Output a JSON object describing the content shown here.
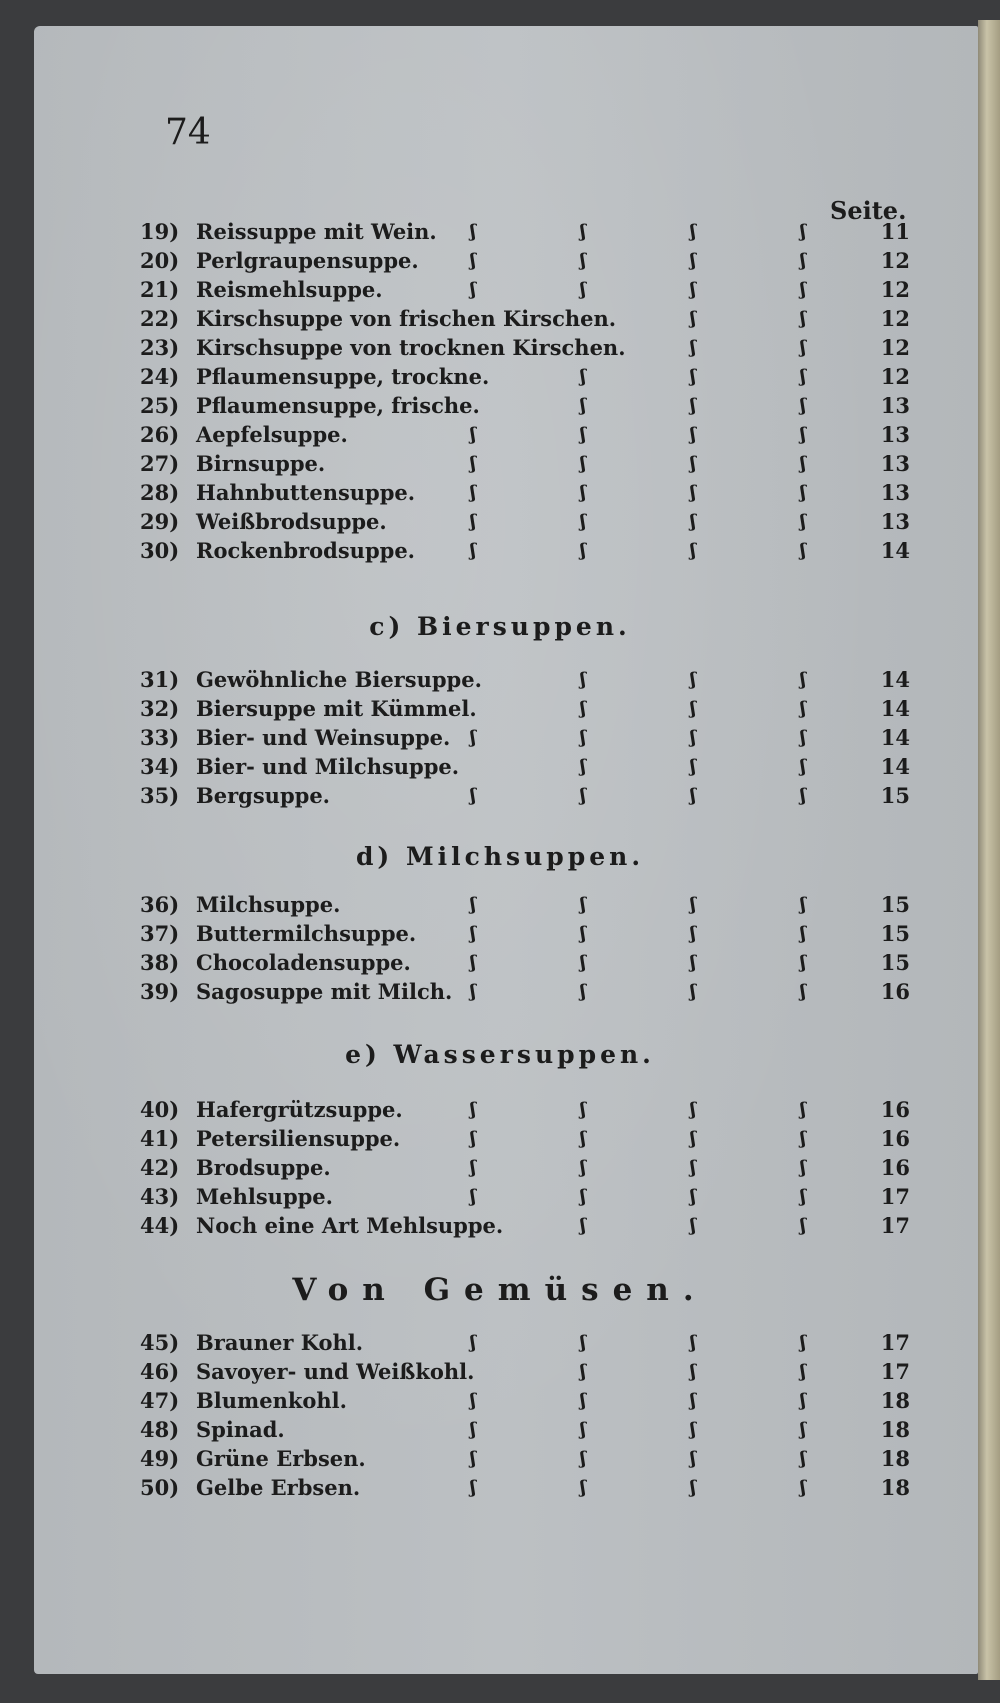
{
  "page_number": "74",
  "column_header": "Seite.",
  "sections": [
    {
      "heading": "",
      "rows": [
        {
          "num": "19)",
          "title": "Reissuppe mit Wein.",
          "page": "11"
        },
        {
          "num": "20)",
          "title": "Perlgraupensuppe.",
          "page": "12"
        },
        {
          "num": "21)",
          "title": "Reismehlsuppe.",
          "page": "12"
        },
        {
          "num": "22)",
          "title": "Kirschsuppe von frischen Kirschen.",
          "page": "12"
        },
        {
          "num": "23)",
          "title": "Kirschsuppe von trocknen Kirschen.",
          "page": "12"
        },
        {
          "num": "24)",
          "title": "Pflaumensuppe, trockne.",
          "page": "12"
        },
        {
          "num": "25)",
          "title": "Pflaumensuppe, frische.",
          "page": "13"
        },
        {
          "num": "26)",
          "title": "Aepfelsuppe.",
          "page": "13"
        },
        {
          "num": "27)",
          "title": "Birnsuppe.",
          "page": "13"
        },
        {
          "num": "28)",
          "title": "Hahnbuttensuppe.",
          "page": "13"
        },
        {
          "num": "29)",
          "title": "Weißbrodsuppe.",
          "page": "13"
        },
        {
          "num": "30)",
          "title": "Rockenbrodsuppe.",
          "page": "14"
        }
      ]
    },
    {
      "heading": "c) Biersuppen.",
      "rows": [
        {
          "num": "31)",
          "title": "Gewöhnliche Biersuppe.",
          "page": "14"
        },
        {
          "num": "32)",
          "title": "Biersuppe mit Kümmel.",
          "page": "14"
        },
        {
          "num": "33)",
          "title": "Bier- und Weinsuppe.",
          "page": "14"
        },
        {
          "num": "34)",
          "title": "Bier- und Milchsuppe.",
          "page": "14"
        },
        {
          "num": "35)",
          "title": "Bergsuppe.",
          "page": "15"
        }
      ]
    },
    {
      "heading": "d) Milchsuppen.",
      "rows": [
        {
          "num": "36)",
          "title": "Milchsuppe.",
          "page": "15"
        },
        {
          "num": "37)",
          "title": "Buttermilchsuppe.",
          "page": "15"
        },
        {
          "num": "38)",
          "title": "Chocoladensuppe.",
          "page": "15"
        },
        {
          "num": "39)",
          "title": "Sagosuppe mit Milch.",
          "page": "16"
        }
      ]
    },
    {
      "heading": "e) Wassersuppen.",
      "rows": [
        {
          "num": "40)",
          "title": "Hafergrützsuppe.",
          "page": "16"
        },
        {
          "num": "41)",
          "title": "Petersiliensuppe.",
          "page": "16"
        },
        {
          "num": "42)",
          "title": "Brodsuppe.",
          "page": "16"
        },
        {
          "num": "43)",
          "title": "Mehlsuppe.",
          "page": "17"
        },
        {
          "num": "44)",
          "title": "Noch eine Art Mehlsuppe.",
          "page": "17"
        }
      ]
    },
    {
      "heading": "Von Gemüsen.",
      "rows": [
        {
          "num": "45)",
          "title": "Brauner Kohl.",
          "page": "17"
        },
        {
          "num": "46)",
          "title": "Savoyer- und Weißkohl.",
          "page": "17"
        },
        {
          "num": "47)",
          "title": "Blumenkohl.",
          "page": "18"
        },
        {
          "num": "48)",
          "title": "Spinad.",
          "page": "18"
        },
        {
          "num": "49)",
          "title": "Grüne Erbsen.",
          "page": "18"
        },
        {
          "num": "50)",
          "title": "Gelbe Erbsen.",
          "page": "18"
        }
      ]
    }
  ],
  "leader_glyph": "ʃ",
  "colors": {
    "paper": "#b9bdc0",
    "ink": "#1c1c1c",
    "background": "#3b3c3e"
  }
}
